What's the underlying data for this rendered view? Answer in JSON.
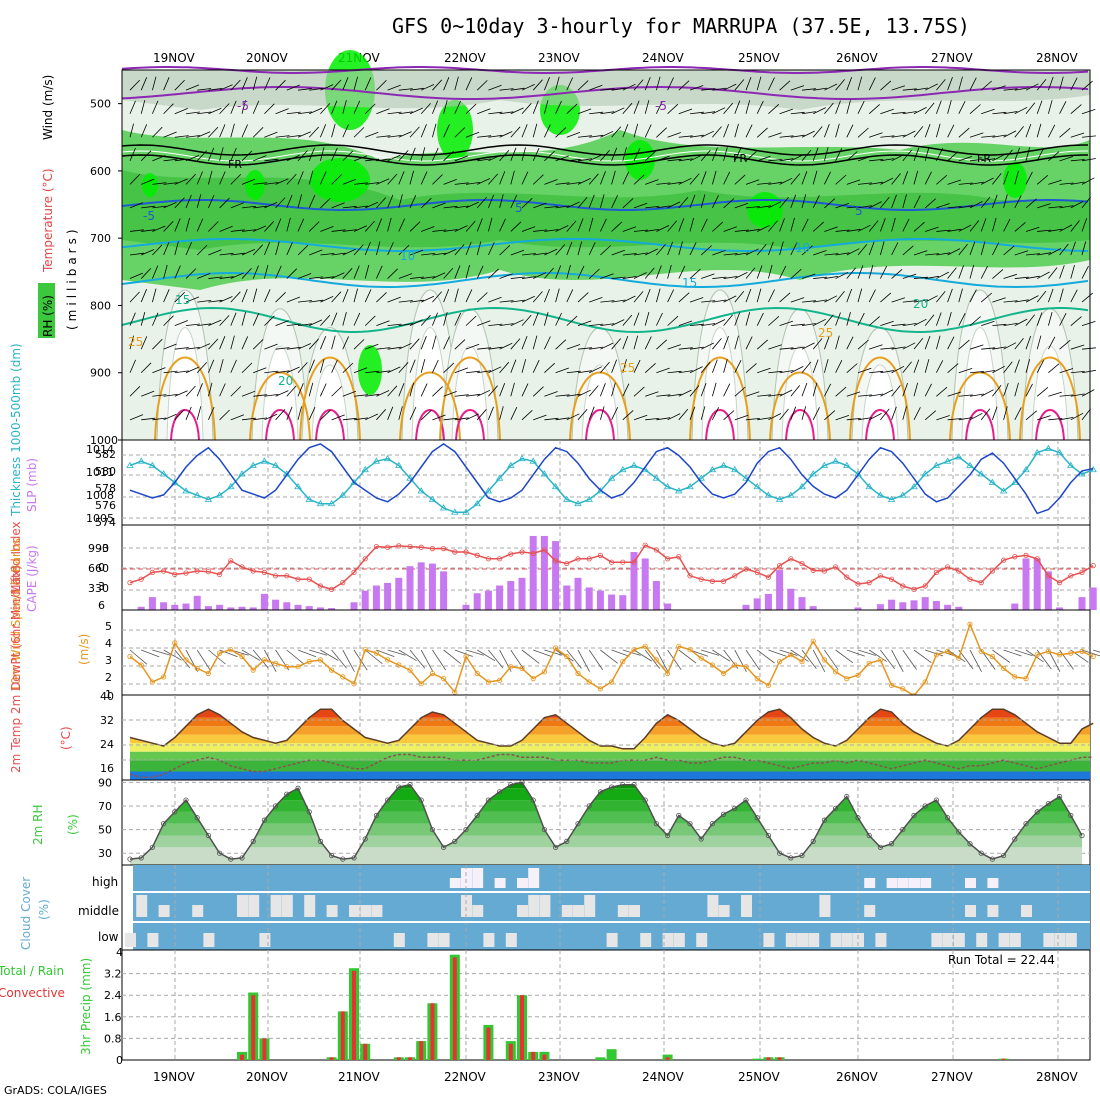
{
  "title": "GFS 0~10day 3-hourly for MARRUPA (37.5E, 13.75S)",
  "credit": "GrADS: COLA/IGES",
  "date_labels": [
    "19NOV",
    "20NOV",
    "21NOV",
    "22NOV",
    "23NOV",
    "24NOV",
    "25NOV",
    "26NOV",
    "27NOV",
    "28NOV"
  ],
  "colors": {
    "rh_green": "#3cc83c",
    "rh_bright": "#00ee00",
    "rh_gray": "#b4c8b4",
    "temp_purple": "#8c28b4",
    "temp_blue": "#1e5ad2",
    "temp_cyan": "#14aadc",
    "temp_teal": "#14b48c",
    "temp_orange": "#e6a01e",
    "temp_magenta": "#e61e8c",
    "slp": "#1e46c8",
    "thickness": "#28b4c8",
    "cape": "#c878f0",
    "li": "#e65050",
    "wind": "#e6961e",
    "cloud_blue": "#64aad2",
    "cloud_gray": "#e6e6e6",
    "precip_total": "#32c832",
    "precip_conv": "#e63232"
  },
  "panels": {
    "upper": {
      "ylabel": "(millibars)",
      "title_parts": [
        "RH (%)",
        "Temperature (°C)",
        "Wind (m/s)"
      ],
      "y_ticks": [
        "500",
        "600",
        "700",
        "800",
        "900",
        "1000"
      ],
      "fr_label": "FR",
      "contour_labels": [
        "-5",
        "-5",
        "-5",
        "5",
        "5",
        "10",
        "10",
        "15",
        "15",
        "20",
        "20",
        "25",
        "25",
        "25"
      ]
    },
    "slp": {
      "label_thickness": "Thickness 1000-500mb (dm)",
      "label_slp": "SLP (mb)",
      "left_ticks": [
        "582",
        "580",
        "578",
        "576",
        "574"
      ],
      "right_ticks": [
        "1014",
        "1011",
        "1008",
        "1005"
      ]
    },
    "cape": {
      "label_li": "Lifted Index",
      "label_cape": "CAPE (J/kg)",
      "left_ticks": [
        "-3",
        "0",
        "3",
        "6"
      ],
      "right_ticks": [
        "990",
        "660",
        "330"
      ]
    },
    "wind": {
      "label": "10m Wind Speed & Barbs",
      "unit": "(m/s)",
      "ticks": [
        "5",
        "4",
        "3",
        "2",
        "1"
      ]
    },
    "temp": {
      "label": "2m Temp 2m DewPt (6hr Min/Max)",
      "unit": "(°C)",
      "ticks": [
        "40",
        "32",
        "24",
        "16"
      ]
    },
    "rh": {
      "label": "2m RH",
      "unit": "(%)",
      "ticks": [
        "90",
        "70",
        "50",
        "30"
      ]
    },
    "cloud": {
      "label": "Cloud Cover",
      "unit": "(%)",
      "levels": [
        "high",
        "middle",
        "low"
      ]
    },
    "precip": {
      "label": "3hr Precip (mm)",
      "legend_total": "Total / Rain",
      "legend_conv": "Convective",
      "run_total": "Run Total = 22.44",
      "ticks": [
        "4",
        "3.2",
        "2.4",
        "1.6",
        "0.8",
        "0"
      ]
    }
  },
  "chart_data": [
    {
      "type": "line",
      "title": "SLP (mb)",
      "x_unit": "hours from 18NOV 12Z (3-hourly)",
      "ylim": [
        1005,
        1015
      ],
      "series": [
        {
          "name": "SLP (mb)",
          "values": [
            1009,
            1008.5,
            1008,
            1008.4,
            1010,
            1012,
            1013.5,
            1014.5,
            1013,
            1011,
            1009,
            1008.5,
            1008,
            1009,
            1011,
            1013,
            1014.5,
            1015,
            1014,
            1012,
            1010,
            1009,
            1008,
            1007.5,
            1008.5,
            1010,
            1012,
            1014,
            1015,
            1014,
            1012,
            1010,
            1008,
            1007.5,
            1008,
            1009,
            1011,
            1013,
            1014.5,
            1014,
            1012.5,
            1010.5,
            1009,
            1008,
            1008.5,
            1010,
            1012,
            1014,
            1014.5,
            1013.5,
            1012,
            1010,
            1008.5,
            1008,
            1008.5,
            1010,
            1012.5,
            1014,
            1014.5,
            1013,
            1011,
            1009.5,
            1008.5,
            1008,
            1009,
            1011,
            1013,
            1014.5,
            1014,
            1012.5,
            1010.5,
            1008.5,
            1007.5,
            1008,
            1009.5,
            1011,
            1013,
            1013.8,
            1012.5,
            1010.5,
            1008.5,
            1006,
            1006.5,
            1008,
            1010,
            1011.5,
            1011.8
          ]
        }
      ]
    },
    {
      "type": "line",
      "title": "Thickness 1000-500mb (dm)",
      "ylim": [
        574,
        583
      ],
      "series": [
        {
          "name": "Thickness 1000-500mb (dm)",
          "values": [
            580,
            580.5,
            580,
            579,
            578,
            577,
            576.5,
            576,
            576.5,
            577.5,
            579,
            580,
            580.5,
            580,
            579,
            577.5,
            576,
            575.5,
            575.5,
            576.5,
            578,
            579.5,
            580.5,
            580.8,
            580,
            578.5,
            577,
            576,
            575,
            574.5,
            574.5,
            575.5,
            577,
            578.5,
            580,
            580.8,
            580.5,
            579,
            577.5,
            576,
            575.5,
            576,
            577,
            578.5,
            579.5,
            580,
            579.5,
            578.5,
            577.5,
            577,
            577.5,
            578.5,
            579.5,
            580,
            579.5,
            578.5,
            577.5,
            576.5,
            576,
            576.5,
            577.5,
            579,
            580,
            580.5,
            580,
            579,
            577.5,
            576.5,
            576,
            576.5,
            577.5,
            579,
            580,
            580.5,
            581,
            580,
            579,
            578,
            577,
            578,
            579.5,
            581.5,
            582,
            581.5,
            580,
            579,
            579.5
          ]
        }
      ]
    },
    {
      "type": "bar",
      "title": "CAPE (J/kg)",
      "ylim": [
        0,
        1320
      ],
      "values": [
        0,
        50,
        200,
        120,
        80,
        100,
        220,
        60,
        80,
        40,
        50,
        40,
        250,
        160,
        120,
        80,
        60,
        40,
        30,
        0,
        120,
        300,
        380,
        420,
        500,
        680,
        740,
        720,
        600,
        0,
        80,
        260,
        300,
        380,
        450,
        500,
        1150,
        1150,
        1070,
        380,
        500,
        350,
        300,
        240,
        230,
        900,
        800,
        450,
        100,
        0,
        0,
        0,
        0,
        0,
        0,
        80,
        180,
        250,
        620,
        330,
        200,
        60,
        0,
        0,
        0,
        40,
        0,
        90,
        160,
        120,
        150,
        200,
        140,
        80,
        50,
        0,
        0,
        0,
        0,
        100,
        800,
        800,
        600,
        40,
        0,
        200,
        350,
        350
      ]
    },
    {
      "type": "line",
      "title": "Lifted Index",
      "ylim": [
        -4.5,
        6
      ],
      "series": [
        {
          "name": "Lifted Index",
          "values": [
            2,
            1.5,
            0.5,
            0.3,
            0.8,
            0.6,
            0.3,
            0.4,
            0.8,
            -1.2,
            -0.3,
            0.3,
            0.5,
            1,
            1,
            1.5,
            1.5,
            2.5,
            3,
            2,
            0.5,
            -1.5,
            -3.3,
            -3.2,
            -3.4,
            -3.3,
            -3.2,
            -3,
            -3,
            -2.5,
            -2.5,
            -2,
            -1.5,
            -1.5,
            -2.2,
            -2.5,
            -2.3,
            -2.8,
            -1.2,
            -0.8,
            -1.5,
            -1.5,
            -2,
            -1,
            -1,
            -1,
            -3.5,
            -2.8,
            -1.5,
            -1.8,
            1,
            1.5,
            1.8,
            1.8,
            1,
            0,
            0.5,
            1.2,
            -0.5,
            -1.5,
            -0.8,
            0.2,
            0.3,
            -0.3,
            1.2,
            2.2,
            2,
            1,
            1.5,
            2.5,
            3,
            2.5,
            0.5,
            -0.3,
            0.3,
            1.5,
            2,
            0.3,
            -1.3,
            -1.8,
            -2,
            -1.5,
            1,
            2,
            1,
            0.5,
            -0.5
          ]
        }
      ]
    },
    {
      "type": "line",
      "title": "10m Wind Speed",
      "ylim": [
        0.5,
        5
      ],
      "series": [
        {
          "name": "10m Wind Speed",
          "values": [
            3,
            2.5,
            1.5,
            1.8,
            3.8,
            2.8,
            2.3,
            2,
            3.2,
            3.4,
            3,
            2.2,
            2.8,
            2.6,
            2.4,
            2.4,
            2.7,
            2.8,
            2.2,
            1.8,
            1.4,
            3.4,
            3.2,
            2.8,
            2.5,
            2.2,
            1.4,
            2,
            1.7,
            0.9,
            3,
            2,
            1.5,
            1.6,
            2.4,
            2.3,
            1.7,
            2.1,
            3.5,
            3,
            2,
            1.5,
            1.1,
            1.5,
            2.7,
            3.4,
            3.6,
            2.8,
            2,
            3.6,
            3.4,
            2.9,
            2.5,
            2,
            2.5,
            2.4,
            1.7,
            1.3,
            2.7,
            3.1,
            2.7,
            3.9,
            2.8,
            2.1,
            1.7,
            1.9,
            2.6,
            2.8,
            1.3,
            1.1,
            0.7,
            1.5,
            3.1,
            3.3,
            2.9,
            4.9,
            3.3,
            3,
            2.3,
            1.8,
            1.7,
            3.1,
            3.3,
            3.1,
            3.2,
            3.3,
            3
          ]
        }
      ]
    },
    {
      "type": "area",
      "title": "2m Temp (°C)",
      "ylim": [
        10,
        40
      ],
      "series": [
        {
          "name": "2m Temp",
          "values": [
            25,
            24,
            23,
            22,
            25,
            29,
            33,
            35,
            33,
            30,
            27,
            25,
            24,
            23,
            24,
            28,
            32,
            35,
            35,
            31,
            28,
            25,
            24,
            23,
            24,
            28,
            32,
            34,
            33,
            30,
            27,
            24,
            23,
            22,
            22,
            24,
            28,
            32,
            33,
            30,
            27,
            24,
            22,
            22,
            21,
            21,
            25,
            30,
            33,
            31,
            28,
            25,
            23,
            22,
            23,
            27,
            31,
            34,
            35,
            32,
            28,
            25,
            23,
            22,
            24,
            28,
            32,
            35,
            34,
            30,
            27,
            25,
            23,
            22,
            24,
            28,
            32,
            35,
            35,
            33,
            30,
            27,
            25,
            23,
            23,
            28,
            30
          ]
        },
        {
          "name": "2m DewPt",
          "values": [
            12,
            11,
            11,
            12,
            14,
            16,
            17,
            18,
            17,
            15,
            14,
            13,
            13,
            14,
            15,
            16,
            17,
            17,
            16,
            15,
            14,
            14,
            16,
            18,
            19,
            19,
            18,
            18,
            18,
            17,
            17,
            17,
            18,
            19,
            19,
            18,
            18,
            18,
            17,
            17,
            17,
            16,
            16,
            16,
            17,
            17,
            17,
            18,
            17,
            17,
            16,
            16,
            17,
            18,
            18,
            17,
            17,
            16,
            15,
            14,
            15,
            16,
            16,
            17,
            16,
            17,
            16,
            15,
            14,
            15,
            16,
            17,
            16,
            15,
            14,
            15,
            15,
            16,
            17,
            16,
            15,
            14,
            15,
            16,
            17,
            18,
            18
          ]
        }
      ]
    },
    {
      "type": "area",
      "title": "2m RH (%)",
      "ylim": [
        20,
        90
      ],
      "series": [
        {
          "name": "2m RH",
          "values": [
            25,
            26,
            35,
            55,
            65,
            75,
            60,
            45,
            30,
            25,
            26,
            40,
            58,
            70,
            80,
            85,
            65,
            40,
            28,
            25,
            26,
            42,
            62,
            75,
            86,
            88,
            75,
            50,
            35,
            40,
            50,
            62,
            75,
            82,
            88,
            90,
            75,
            50,
            35,
            40,
            55,
            70,
            82,
            86,
            88,
            88,
            75,
            55,
            45,
            62,
            55,
            42,
            55,
            63,
            68,
            75,
            60,
            45,
            30,
            26,
            28,
            40,
            58,
            68,
            78,
            60,
            45,
            35,
            38,
            50,
            62,
            70,
            75,
            60,
            48,
            38,
            30,
            25,
            28,
            42,
            55,
            65,
            72,
            78,
            62,
            45
          ]
        }
      ]
    },
    {
      "type": "bar",
      "title": "3hr Precip (mm)",
      "ylim": [
        0,
        4
      ],
      "series": [
        {
          "name": "Total / Rain",
          "values": [
            0,
            0,
            0,
            0,
            0,
            0,
            0,
            0,
            0,
            0,
            0.3,
            2.5,
            0.8,
            0,
            0,
            0,
            0,
            0,
            0.1,
            1.8,
            3.4,
            0.6,
            0,
            0,
            0.1,
            0.1,
            0.7,
            2.1,
            0,
            3.9,
            0,
            0,
            1.3,
            0,
            0.7,
            2.4,
            0.3,
            0.3,
            0,
            0,
            0,
            0,
            0.1,
            0.4,
            0,
            0,
            0,
            0,
            0.2,
            0,
            0,
            0,
            0,
            0,
            0,
            0,
            0.05,
            0.1,
            0.1,
            0,
            0,
            0,
            0,
            0,
            0,
            0,
            0,
            0,
            0,
            0,
            0,
            0,
            0,
            0,
            0,
            0,
            0,
            0,
            0.05,
            0,
            0,
            0,
            0,
            0,
            0,
            0,
            0
          ]
        },
        {
          "name": "Convective",
          "values": [
            0,
            0,
            0,
            0,
            0,
            0,
            0,
            0,
            0,
            0,
            0.2,
            2.4,
            0.8,
            0,
            0,
            0,
            0,
            0,
            0.1,
            1.8,
            3.3,
            0.6,
            0,
            0,
            0.1,
            0.1,
            0.7,
            2.1,
            0,
            3.8,
            0,
            0,
            1.2,
            0,
            0.6,
            2.4,
            0.3,
            0.2,
            0,
            0,
            0,
            0,
            0,
            0,
            0,
            0,
            0,
            0,
            0.1,
            0,
            0,
            0,
            0,
            0,
            0,
            0,
            0,
            0.1,
            0.1,
            0,
            0,
            0,
            0,
            0,
            0,
            0,
            0,
            0,
            0,
            0,
            0,
            0,
            0,
            0,
            0,
            0,
            0,
            0,
            0.05,
            0,
            0,
            0,
            0,
            0,
            0,
            0,
            0
          ]
        }
      ]
    }
  ]
}
